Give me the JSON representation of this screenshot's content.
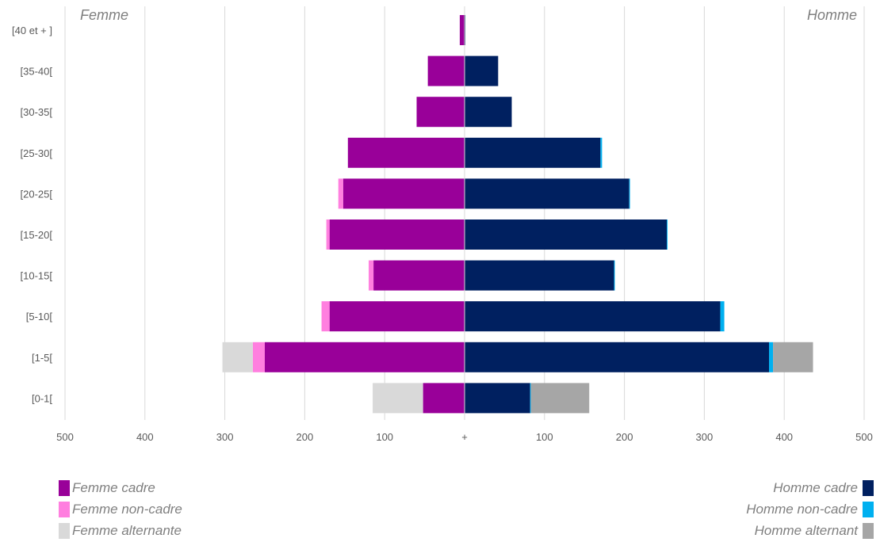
{
  "chart_data": {
    "type": "bar",
    "orientation": "horizontal-population-pyramid",
    "left_title": "Femme",
    "right_title": "Homme",
    "categories": [
      "[40 et + ]",
      "[35-40[",
      "[30-35[",
      "[25-30[",
      "[20-25[",
      "[15-20[",
      "[10-15[",
      "[5-10[",
      "[1-5[",
      "[0-1["
    ],
    "x_tick_labels": [
      "500",
      "400",
      "300",
      "200",
      "100",
      "+",
      "100",
      "200",
      "300",
      "400",
      "500"
    ],
    "xlim": [
      -500,
      500
    ],
    "grid": true,
    "series": [
      {
        "name": "Femme cadre",
        "side": "left",
        "color": "#990099",
        "values": [
          6,
          46,
          60,
          146,
          152,
          169,
          114,
          169,
          250,
          52
        ]
      },
      {
        "name": "Femme non-cadre",
        "side": "left",
        "color": "#ff7fdf",
        "values": [
          0,
          0,
          0,
          0,
          6,
          4,
          6,
          10,
          15,
          0
        ]
      },
      {
        "name": "Femme alternante",
        "side": "left",
        "color": "#d9d9d9",
        "values": [
          0,
          0,
          0,
          0,
          0,
          0,
          0,
          0,
          38,
          63
        ]
      },
      {
        "name": "Homme cadre",
        "side": "right",
        "color": "#002060",
        "values": [
          1,
          42,
          59,
          170,
          206,
          253,
          187,
          320,
          381,
          82
        ]
      },
      {
        "name": "Homme non-cadre",
        "side": "right",
        "color": "#00b0f0",
        "values": [
          0,
          0,
          0,
          2,
          1,
          1,
          1,
          5,
          5,
          1
        ]
      },
      {
        "name": "Homme alternant",
        "side": "right",
        "color": "#a6a6a6",
        "values": [
          0,
          0,
          0,
          0,
          0,
          0,
          0,
          0,
          50,
          73
        ]
      }
    ]
  }
}
